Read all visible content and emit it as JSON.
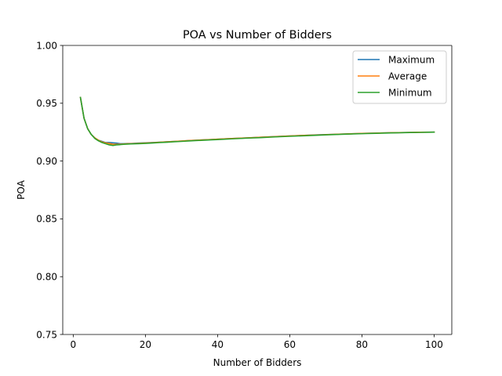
{
  "chart_data": {
    "type": "line",
    "title": "POA vs Number of Bidders",
    "xlabel": "Number of Bidders",
    "ylabel": "POA",
    "xlim": [
      -2.9,
      104.9
    ],
    "ylim": [
      0.75,
      1.0
    ],
    "xticks": [
      0,
      20,
      40,
      60,
      80,
      100
    ],
    "yticks": [
      0.75,
      0.8,
      0.85,
      0.9,
      0.95,
      1.0
    ],
    "xtick_labels": [
      "0",
      "20",
      "40",
      "60",
      "80",
      "100"
    ],
    "ytick_labels": [
      "0.75",
      "0.80",
      "0.85",
      "0.90",
      "0.95",
      "1.00"
    ],
    "grid": false,
    "legend_position": "top-right",
    "x": [
      2,
      3,
      4,
      5,
      6,
      7,
      8,
      9,
      10,
      11,
      12,
      13,
      14,
      15,
      16,
      18,
      20,
      22,
      24,
      26,
      28,
      30,
      32,
      34,
      36,
      38,
      40,
      44,
      48,
      52,
      56,
      60,
      64,
      68,
      72,
      76,
      80,
      84,
      88,
      92,
      96,
      100
    ],
    "series": [
      {
        "name": "Maximum",
        "color": "#1f77b4",
        "values": [
          0.955,
          0.937,
          0.928,
          0.923,
          0.92,
          0.918,
          0.917,
          0.916,
          0.916,
          0.9158,
          0.9155,
          0.915,
          0.915,
          0.9152,
          0.9152,
          0.9155,
          0.9158,
          0.916,
          0.9163,
          0.9167,
          0.917,
          0.9173,
          0.9177,
          0.918,
          0.9183,
          0.9186,
          0.9189,
          0.9195,
          0.92,
          0.9206,
          0.9212,
          0.9217,
          0.9222,
          0.9227,
          0.9231,
          0.9235,
          0.9239,
          0.9242,
          0.9245,
          0.9247,
          0.9249,
          0.925
        ]
      },
      {
        "name": "Average",
        "color": "#ff7f0e",
        "values": [
          0.955,
          0.937,
          0.928,
          0.923,
          0.92,
          0.918,
          0.9165,
          0.9157,
          0.9152,
          0.9145,
          0.9145,
          0.9145,
          0.9148,
          0.915,
          0.915,
          0.9153,
          0.9156,
          0.9159,
          0.9163,
          0.9166,
          0.917,
          0.9173,
          0.9177,
          0.918,
          0.9183,
          0.9186,
          0.9189,
          0.9195,
          0.92,
          0.9206,
          0.9211,
          0.9217,
          0.9222,
          0.9226,
          0.9231,
          0.9235,
          0.9239,
          0.9242,
          0.9245,
          0.9247,
          0.9249,
          0.925
        ]
      },
      {
        "name": "Minimum",
        "color": "#2ca02c",
        "values": [
          0.955,
          0.937,
          0.928,
          0.923,
          0.9195,
          0.9175,
          0.916,
          0.915,
          0.914,
          0.9135,
          0.914,
          0.9142,
          0.9145,
          0.9147,
          0.9148,
          0.915,
          0.9153,
          0.9156,
          0.916,
          0.9163,
          0.9167,
          0.917,
          0.9174,
          0.9177,
          0.918,
          0.9183,
          0.9186,
          0.9192,
          0.9198,
          0.9203,
          0.9209,
          0.9214,
          0.9219,
          0.9224,
          0.9229,
          0.9233,
          0.9237,
          0.924,
          0.9243,
          0.9246,
          0.9248,
          0.925
        ]
      }
    ]
  }
}
